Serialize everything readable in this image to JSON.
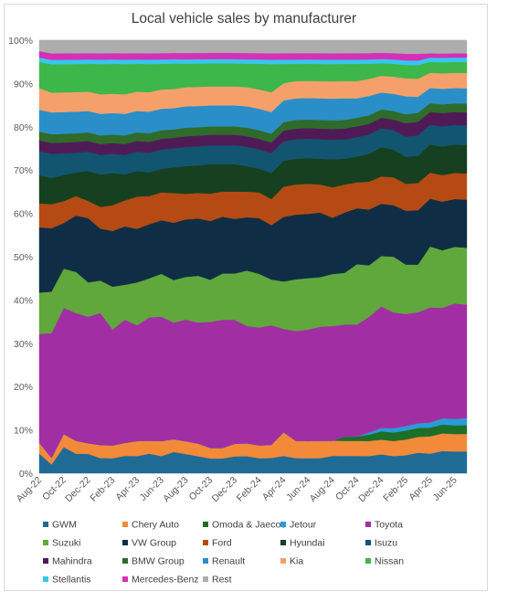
{
  "chart_data": {
    "type": "area",
    "stacked": true,
    "percent": true,
    "title": "Local vehicle sales by manufacturer",
    "xlabel": "",
    "ylabel": "",
    "ylim": [
      0,
      100
    ],
    "yticks": [
      "0%",
      "10%",
      "20%",
      "30%",
      "40%",
      "50%",
      "60%",
      "70%",
      "80%",
      "90%",
      "100%"
    ],
    "grid": true,
    "legend_position": "bottom",
    "x": [
      "Aug-22",
      "Sep-22",
      "Oct-22",
      "Nov-22",
      "Dec-22",
      "Jan-23",
      "Feb-23",
      "Mar-23",
      "Apr-23",
      "May-23",
      "Jun-23",
      "Jul-23",
      "Aug-23",
      "Sep-23",
      "Oct-23",
      "Nov-23",
      "Dec-23",
      "Jan-24",
      "Feb-24",
      "Mar-24",
      "Apr-24",
      "May-24",
      "Jun-24",
      "Jul-24",
      "Aug-24",
      "Sep-24",
      "Oct-24",
      "Nov-24",
      "Dec-24",
      "Jan-25",
      "Feb-25",
      "Mar-25",
      "Apr-25",
      "May-25",
      "Jun-25",
      "Jul-25"
    ],
    "xtick_labels": [
      "Aug-22",
      "Oct-22",
      "Dec-22",
      "Feb-23",
      "Apr-23",
      "Jun-23",
      "Aug-23",
      "Oct-23",
      "Dec-23",
      "Feb-24",
      "Apr-24",
      "Jun-24",
      "Aug-24",
      "Oct-24",
      "Dec-24",
      "Feb-25",
      "Apr-25",
      "Jun-25"
    ],
    "series": [
      {
        "name": "GWM",
        "color": "#1f6b96",
        "values": [
          4.5,
          2,
          6,
          4.5,
          4.5,
          3.5,
          3.5,
          4,
          4,
          4.5,
          4,
          5,
          4.5,
          4,
          3.5,
          3.5,
          4,
          4,
          3.5,
          3.5,
          4,
          3.5,
          3.5,
          3.5,
          4,
          4,
          4,
          4,
          4.5,
          4,
          4,
          4.5,
          4.5,
          5,
          5,
          5
        ]
      },
      {
        "name": "Chery Auto",
        "color": "#f28a3a",
        "values": [
          2.5,
          1.5,
          3,
          3,
          2.5,
          3,
          3,
          3,
          3.5,
          3,
          3.5,
          3,
          3,
          3,
          2.5,
          2.5,
          3,
          3,
          3,
          3,
          5.5,
          4,
          4,
          4,
          3.5,
          3.5,
          3.5,
          3.5,
          3.5,
          3.5,
          3.5,
          3.5,
          4,
          4,
          4,
          4
        ]
      },
      {
        "name": "Omoda & Jaecoo",
        "color": "#1d6e27",
        "values": [
          0,
          0,
          0,
          0,
          0,
          0,
          0,
          0,
          0,
          0,
          0,
          0,
          0,
          0,
          0,
          0,
          0,
          0,
          0,
          0,
          0,
          0,
          0,
          0,
          0,
          1,
          1,
          1.5,
          2,
          2,
          2,
          2,
          2,
          2,
          2,
          2
        ]
      },
      {
        "name": "Jetour",
        "color": "#2b9bd6",
        "values": [
          0,
          0,
          0,
          0,
          0,
          0,
          0,
          0,
          0,
          0,
          0,
          0,
          0,
          0,
          0,
          0,
          0,
          0,
          0,
          0,
          0,
          0,
          0,
          0,
          0,
          0,
          0,
          0.5,
          0.8,
          1,
          1,
          1,
          1.2,
          1.4,
          1.5,
          1.6
        ]
      },
      {
        "name": "Toyota",
        "color": "#a22ea4",
        "values": [
          25,
          28.5,
          29,
          29.5,
          29.5,
          30.5,
          27,
          28.5,
          27,
          28.5,
          29,
          27.5,
          28.5,
          28.5,
          30,
          30.5,
          29.5,
          27.5,
          27.5,
          27.5,
          24,
          25.5,
          26,
          26.5,
          26.5,
          26,
          26,
          27,
          29,
          27,
          25,
          24.5,
          26.5,
          25,
          26.5,
          26
        ]
      },
      {
        "name": "Suzuki",
        "color": "#60a83b",
        "values": [
          9.5,
          9.5,
          9,
          9.5,
          8,
          7.5,
          10,
          8,
          10,
          9,
          10,
          10,
          10,
          11,
          10,
          11,
          11,
          13,
          12.5,
          10.5,
          11,
          12,
          12,
          11.5,
          12,
          12,
          14,
          12,
          12,
          13,
          11,
          10.5,
          14,
          13,
          13,
          13
        ]
      },
      {
        "name": "VW Group",
        "color": "#0f2e45",
        "values": [
          15,
          14.5,
          10.5,
          13,
          15,
          12,
          13,
          13.5,
          12.5,
          12.5,
          12.5,
          13.5,
          13.5,
          13.5,
          14,
          13.5,
          13,
          12.5,
          13,
          12.5,
          15,
          15,
          15,
          15,
          13,
          14,
          13,
          13,
          12.5,
          12,
          12,
          12,
          11,
          11,
          11,
          11
        ]
      },
      {
        "name": "Ford",
        "color": "#b54a14",
        "values": [
          5.5,
          5.5,
          5,
          4.5,
          4,
          5,
          6,
          6,
          7.5,
          6.5,
          6.5,
          7,
          6,
          6,
          6.5,
          6,
          6.5,
          6,
          6,
          6,
          7,
          7,
          7,
          6.5,
          7,
          6.5,
          6,
          6.5,
          6.5,
          6.5,
          6,
          6,
          6,
          6,
          6,
          6
        ]
      },
      {
        "name": "Hyundai",
        "color": "#16401f",
        "values": [
          6.5,
          6,
          6,
          5.5,
          7,
          7.5,
          7.5,
          6,
          6,
          5.5,
          5.5,
          6,
          6.5,
          6.5,
          7,
          6.5,
          6.5,
          6,
          5.5,
          6,
          6,
          6,
          6,
          6,
          6.5,
          6,
          6,
          6.5,
          7,
          6.5,
          6,
          6,
          6.5,
          6.5,
          6.5,
          6.5
        ]
      },
      {
        "name": "Isuzu",
        "color": "#115571",
        "values": [
          5.5,
          5.5,
          5,
          4.5,
          4.5,
          4.5,
          4.5,
          4.5,
          4.5,
          4.5,
          4.5,
          4.5,
          4.5,
          4.5,
          4.5,
          4.5,
          4.5,
          4.5,
          4.5,
          4.5,
          4.5,
          4.5,
          4.5,
          4.5,
          4.5,
          4.5,
          4.5,
          4.5,
          4.5,
          4.5,
          4.5,
          4.5,
          4.5,
          4.5,
          4.5,
          4.5
        ]
      },
      {
        "name": "Mahindra",
        "color": "#4f1b57",
        "values": [
          2.5,
          2.5,
          2.5,
          2.5,
          2.5,
          2.5,
          2.5,
          2.5,
          2.5,
          2.5,
          2.5,
          2.5,
          2.5,
          2.5,
          2.5,
          2.5,
          2.5,
          2.5,
          2.5,
          2.5,
          2.5,
          2.5,
          2.5,
          2.5,
          2.5,
          2.5,
          2.5,
          2.5,
          2.5,
          2.5,
          3,
          3,
          3,
          3,
          3,
          3
        ]
      },
      {
        "name": "BMW Group",
        "color": "#2f6b2a",
        "values": [
          2,
          2,
          2,
          2,
          2,
          2,
          2,
          2,
          2,
          2,
          2,
          2,
          2,
          2,
          2,
          2,
          2,
          2,
          2,
          2,
          2,
          2,
          2,
          2,
          2,
          2,
          2,
          2,
          2,
          2,
          2,
          2,
          2,
          2,
          2,
          2
        ]
      },
      {
        "name": "Renault",
        "color": "#2a8fc8",
        "values": [
          5,
          5,
          5,
          5,
          5,
          5,
          5,
          5,
          5,
          5,
          5,
          5,
          5,
          5,
          5,
          5,
          5,
          5,
          5,
          5,
          5,
          5,
          5,
          5,
          5,
          5,
          4.5,
          4.5,
          4,
          4,
          4,
          3.5,
          3.5,
          3.5,
          3.5,
          3.5
        ]
      },
      {
        "name": "Kia",
        "color": "#f5a06b",
        "values": [
          5,
          4.5,
          4.5,
          4.5,
          4.5,
          4.5,
          4.5,
          4.5,
          4.5,
          4.5,
          4.5,
          4.5,
          4.5,
          4.5,
          4.5,
          4.5,
          4.5,
          4.5,
          4.5,
          4.5,
          4,
          4,
          4,
          4,
          4,
          4,
          4,
          4,
          4,
          4,
          4,
          4,
          3.5,
          3.5,
          3.5,
          3.5
        ]
      },
      {
        "name": "Nissan",
        "color": "#3db64a",
        "values": [
          6,
          6.5,
          6.5,
          6.5,
          6.5,
          7,
          7,
          7,
          6.5,
          6.5,
          6,
          6,
          5.5,
          5.5,
          5.5,
          5.5,
          5.5,
          5.5,
          6,
          6.5,
          4.5,
          4,
          4,
          4,
          4,
          4,
          4,
          3.5,
          3,
          3,
          3,
          3,
          2.5,
          2.5,
          2.5,
          2.5
        ]
      },
      {
        "name": "Stellantis",
        "color": "#35c7ef",
        "values": [
          1,
          1,
          1,
          1,
          1,
          1,
          1,
          1,
          1,
          1,
          1,
          1,
          1,
          1,
          1,
          1,
          1,
          1,
          1,
          1,
          1,
          1,
          1,
          1,
          1,
          1,
          1,
          1,
          1,
          1,
          1,
          1,
          1,
          1,
          1,
          1
        ]
      },
      {
        "name": "Mercedes-Benz",
        "color": "#d431b8",
        "values": [
          1.5,
          1.5,
          1.5,
          1.5,
          1.5,
          1.5,
          1.5,
          1.5,
          1.5,
          1.5,
          1.5,
          1.5,
          1.5,
          1.5,
          1.5,
          1.5,
          1.5,
          1.5,
          1.5,
          1.5,
          1.5,
          1.5,
          1.5,
          1.5,
          1.5,
          1.5,
          1.5,
          1.5,
          1.5,
          1.5,
          1.5,
          1.5,
          1,
          1,
          1,
          1
        ]
      },
      {
        "name": "Rest",
        "color": "#adadad",
        "values": [
          2.5,
          3,
          3,
          3,
          3,
          3,
          3,
          3,
          3,
          3,
          3,
          3,
          3,
          3,
          3,
          3,
          3,
          3,
          3,
          3,
          3,
          3,
          3,
          3,
          3,
          3,
          3,
          3,
          3,
          3,
          3,
          3,
          3,
          3,
          3,
          3
        ]
      }
    ]
  }
}
